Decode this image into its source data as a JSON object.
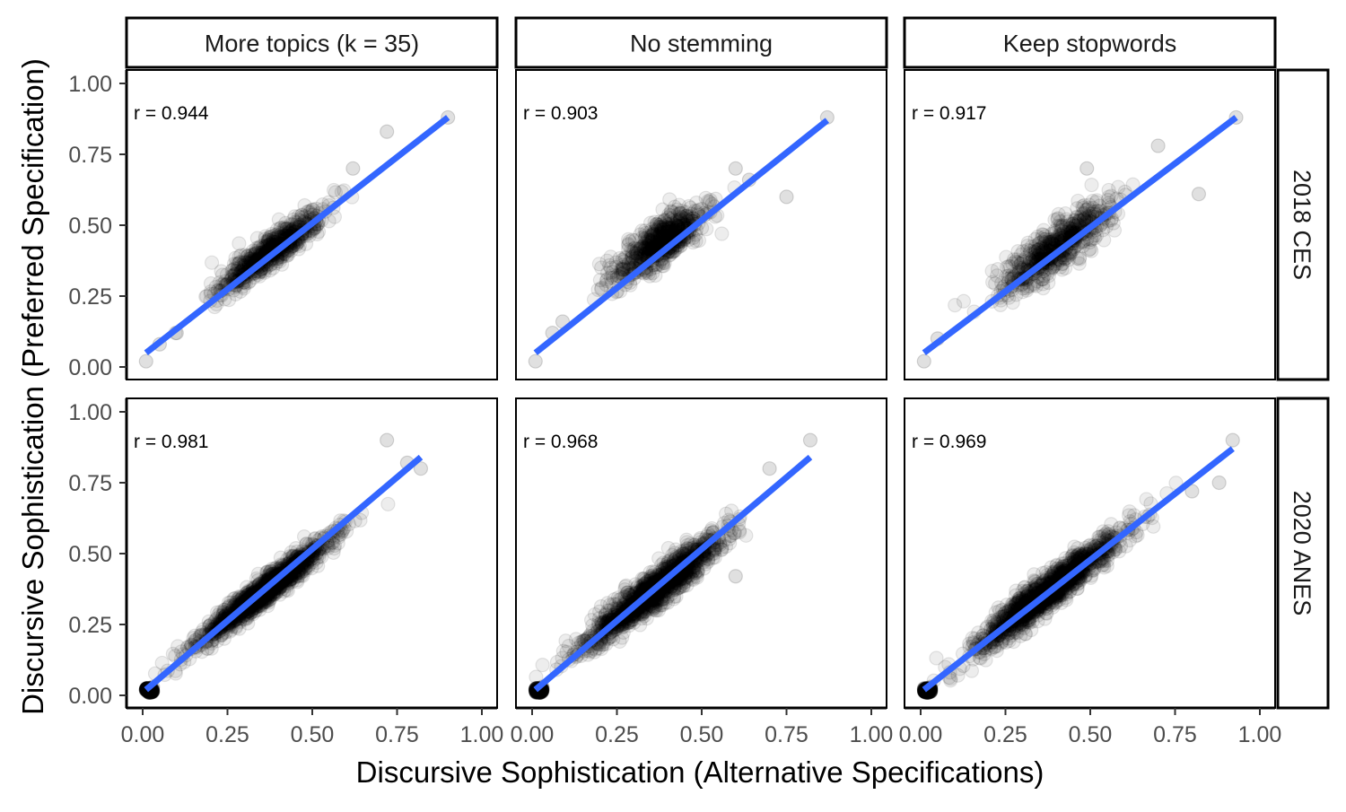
{
  "chart_data": {
    "type": "scatter",
    "layout": "facet-grid",
    "xlabel": "Discursive Sophistication (Alternative Specifications)",
    "ylabel": "Discursive Sophistication (Preferred Specification)",
    "xlim": [
      0,
      1
    ],
    "ylim": [
      0,
      1
    ],
    "x_ticks": [
      "0.00",
      "0.25",
      "0.50",
      "0.75",
      "1.00"
    ],
    "y_ticks": [
      "0.00",
      "0.25",
      "0.50",
      "0.75",
      "1.00"
    ],
    "x_tick_values": [
      0,
      0.25,
      0.5,
      0.75,
      1
    ],
    "y_tick_values": [
      0,
      0.25,
      0.5,
      0.75,
      1
    ],
    "grid": false,
    "point_color": "#000000",
    "point_alpha": 0.07,
    "fit_line_color": "#3366FF",
    "columns": [
      "More topics (k = 35)",
      "No stemming",
      "Keep stopwords"
    ],
    "rows": [
      "2018 CES",
      "2020 ANES"
    ],
    "panels": [
      {
        "row": "2018 CES",
        "column": "More topics (k = 35)",
        "r_label": "r = 0.944",
        "fit_line": {
          "x": [
            0.01,
            0.9
          ],
          "y": [
            0.05,
            0.88
          ]
        },
        "cloud": {
          "x_mean": 0.38,
          "y_mean": 0.41,
          "sd_major": 0.1,
          "sd_minor": 0.022,
          "n": 650
        },
        "extremes": {
          "x": [
            0.01,
            0.05,
            0.1,
            0.62,
            0.72,
            0.9
          ],
          "y": [
            0.02,
            0.08,
            0.12,
            0.7,
            0.83,
            0.88
          ]
        }
      },
      {
        "row": "2018 CES",
        "column": "No stemming",
        "r_label": "r = 0.903",
        "fit_line": {
          "x": [
            0.01,
            0.87
          ],
          "y": [
            0.05,
            0.87
          ]
        },
        "cloud": {
          "x_mean": 0.38,
          "y_mean": 0.44,
          "sd_major": 0.09,
          "sd_minor": 0.03,
          "n": 600
        },
        "extremes": {
          "x": [
            0.01,
            0.06,
            0.09,
            0.6,
            0.64,
            0.75,
            0.87
          ],
          "y": [
            0.02,
            0.12,
            0.16,
            0.7,
            0.66,
            0.6,
            0.88
          ]
        }
      },
      {
        "row": "2018 CES",
        "column": "Keep stopwords",
        "r_label": "r = 0.917",
        "fit_line": {
          "x": [
            0.01,
            0.93
          ],
          "y": [
            0.05,
            0.88
          ]
        },
        "cloud": {
          "x_mean": 0.4,
          "y_mean": 0.42,
          "sd_major": 0.11,
          "sd_minor": 0.03,
          "n": 600
        },
        "extremes": {
          "x": [
            0.01,
            0.05,
            0.49,
            0.7,
            0.82,
            0.93
          ],
          "y": [
            0.02,
            0.1,
            0.7,
            0.78,
            0.61,
            0.88
          ]
        }
      },
      {
        "row": "2020 ANES",
        "column": "More topics (k = 35)",
        "r_label": "r = 0.981",
        "fit_line": {
          "x": [
            0.01,
            0.82
          ],
          "y": [
            0.02,
            0.84
          ]
        },
        "cloud": {
          "x_mean": 0.36,
          "y_mean": 0.37,
          "sd_major": 0.13,
          "sd_minor": 0.016,
          "n": 1400
        },
        "extremes": {
          "x": [
            0.01,
            0.02,
            0.03,
            0.72,
            0.78,
            0.82
          ],
          "y": [
            0.02,
            0.01,
            0.03,
            0.9,
            0.82,
            0.8
          ]
        }
      },
      {
        "row": "2020 ANES",
        "column": "No stemming",
        "r_label": "r = 0.968",
        "fit_line": {
          "x": [
            0.01,
            0.82
          ],
          "y": [
            0.02,
            0.84
          ]
        },
        "cloud": {
          "x_mean": 0.36,
          "y_mean": 0.37,
          "sd_major": 0.13,
          "sd_minor": 0.022,
          "n": 1400
        },
        "extremes": {
          "x": [
            0.01,
            0.02,
            0.03,
            0.6,
            0.7,
            0.82
          ],
          "y": [
            0.02,
            0.01,
            0.03,
            0.42,
            0.8,
            0.9
          ]
        }
      },
      {
        "row": "2020 ANES",
        "column": "Keep stopwords",
        "r_label": "r = 0.969",
        "fit_line": {
          "x": [
            0.01,
            0.92
          ],
          "y": [
            0.02,
            0.87
          ]
        },
        "cloud": {
          "x_mean": 0.38,
          "y_mean": 0.37,
          "sd_major": 0.14,
          "sd_minor": 0.022,
          "n": 1400
        },
        "extremes": {
          "x": [
            0.01,
            0.02,
            0.03,
            0.8,
            0.88,
            0.92
          ],
          "y": [
            0.02,
            0.01,
            0.03,
            0.72,
            0.75,
            0.9
          ]
        }
      }
    ]
  }
}
